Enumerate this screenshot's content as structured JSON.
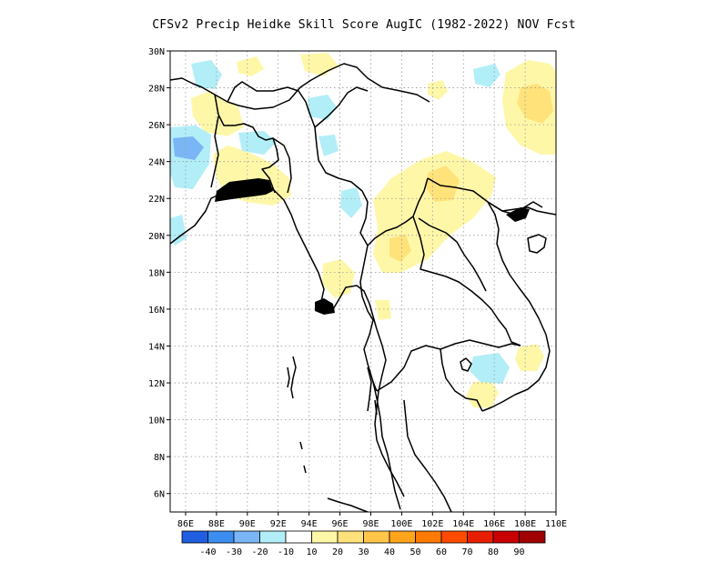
{
  "title": "CFSv2 Precip Heidke Skill Score AugIC (1982-2022) NOV Fcst",
  "map": {
    "lon_min": 85,
    "lon_max": 110,
    "lat_min": 5,
    "lat_max": 30,
    "lon_ticks": [
      "86E",
      "88E",
      "90E",
      "92E",
      "94E",
      "96E",
      "98E",
      "100E",
      "102E",
      "104E",
      "106E",
      "108E",
      "110E"
    ],
    "lat_ticks": [
      "6N",
      "8N",
      "10N",
      "12N",
      "14N",
      "16N",
      "18N",
      "20N",
      "22N",
      "24N",
      "26N",
      "28N",
      "30N"
    ],
    "grid": "dotted"
  },
  "colorbar": {
    "colors": [
      "#1f5fe0",
      "#3b8ef0",
      "#7ab6f5",
      "#b2eef8",
      "#ffffff",
      "#fff7a8",
      "#ffe37a",
      "#ffc64a",
      "#ffa51c",
      "#ff7a00",
      "#ff4a00",
      "#e81e00",
      "#c80000",
      "#a00000"
    ],
    "labels": [
      "-40",
      "-30",
      "-20",
      "-10",
      "10",
      "20",
      "30",
      "40",
      "50",
      "60",
      "70",
      "80",
      "90"
    ]
  },
  "shading": {
    "blue_light": "#b2eef8",
    "blue_mid": "#7ab6f5",
    "yellow_light": "#fff7a8",
    "yellow_mid": "#ffe37a"
  }
}
